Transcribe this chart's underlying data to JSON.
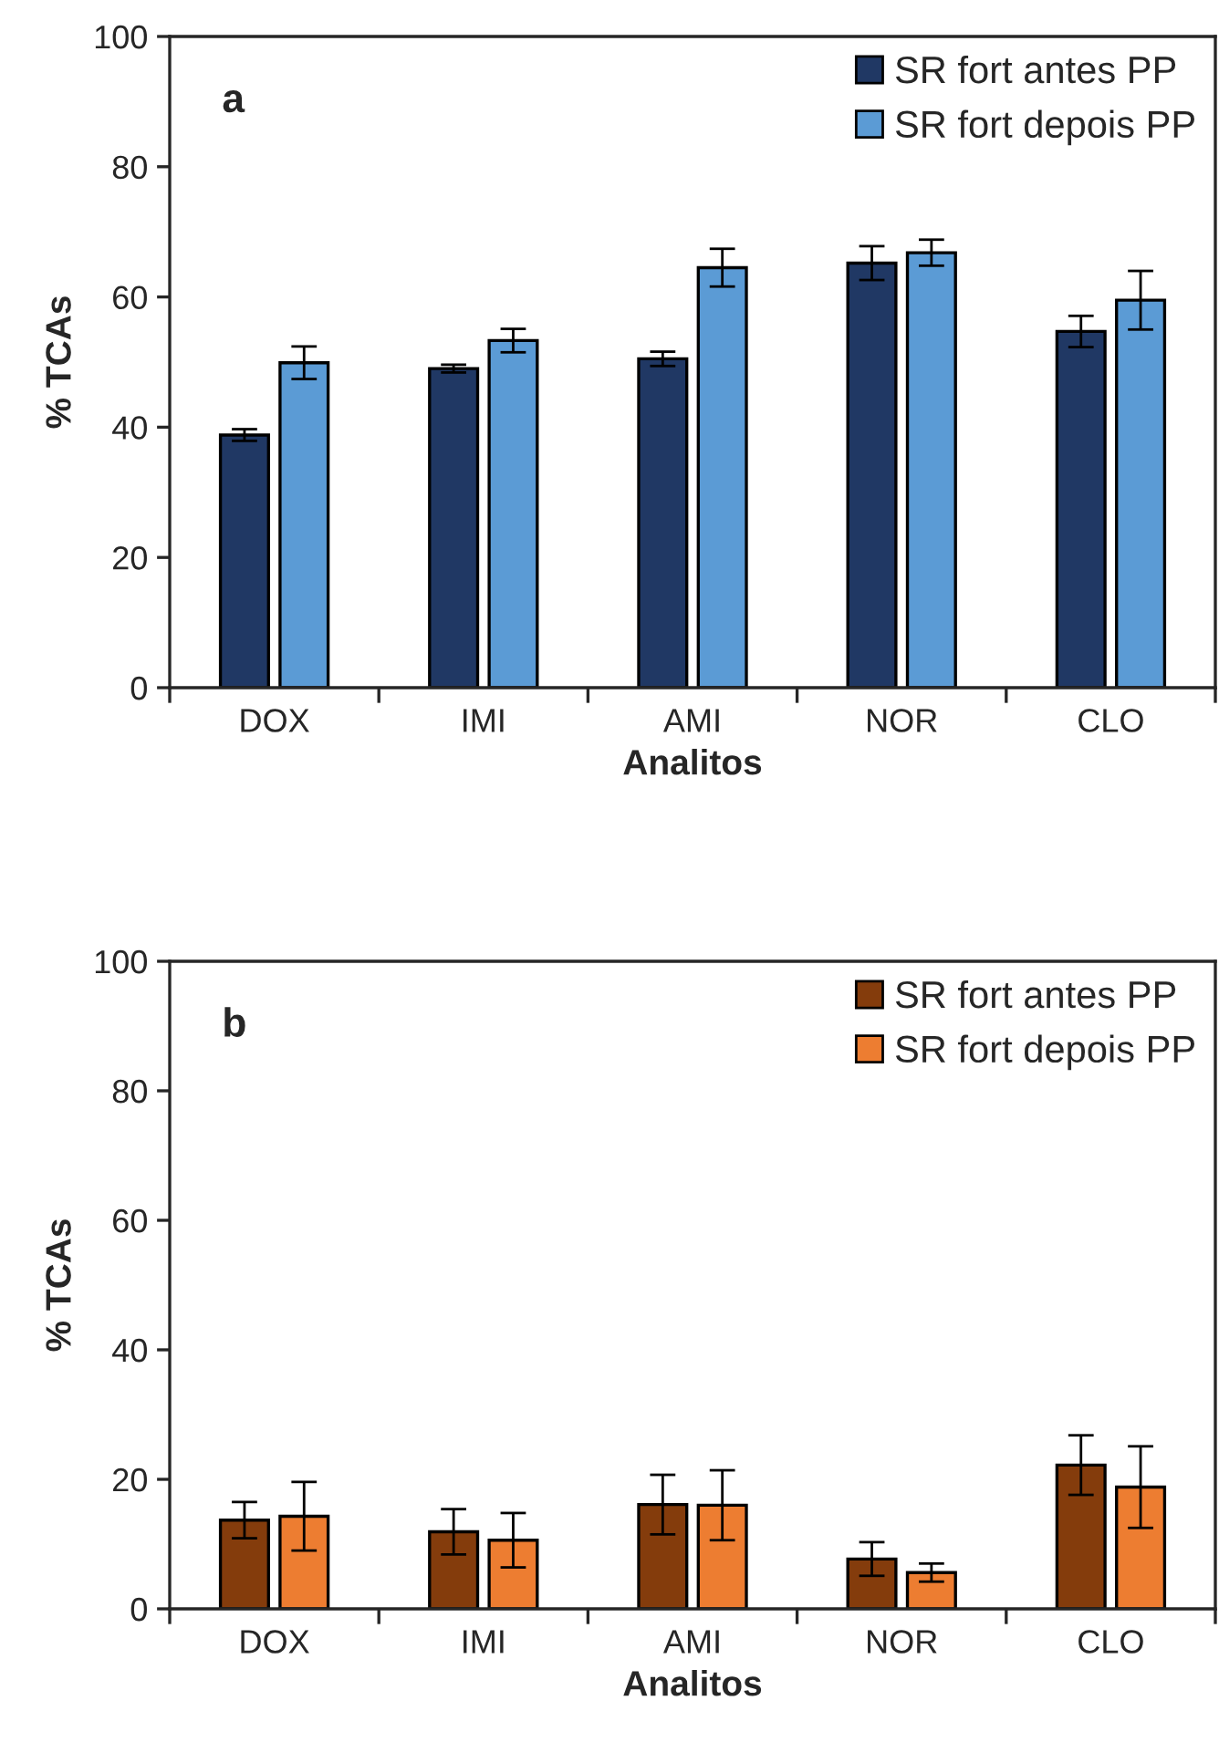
{
  "chart_data": [
    {
      "type": "bar",
      "xlabel": "Analitos",
      "ylabel": "% TCAs",
      "annotations": [
        "a"
      ],
      "categories": [
        "DOX",
        "IMI",
        "AMI",
        "NOR",
        "CLO"
      ],
      "ylim": [
        0,
        100
      ],
      "yticks": [
        0,
        20,
        40,
        60,
        80,
        100
      ],
      "legend": "top right",
      "series": [
        {
          "name": "SR fort antes PP",
          "color": "#203864",
          "values": [
            38.8,
            49,
            50.5,
            65.2,
            54.7
          ],
          "errors": [
            0.9,
            0.6,
            1.1,
            2.6,
            2.4
          ]
        },
        {
          "name": "SR fort depois PP",
          "color": "#5b9bd5",
          "values": [
            49.9,
            53.3,
            64.5,
            66.8,
            59.5
          ],
          "errors": [
            2.5,
            1.8,
            2.9,
            2,
            4.5
          ]
        }
      ]
    },
    {
      "type": "bar",
      "xlabel": "Analitos",
      "ylabel": "% TCAs",
      "annotations": [
        "b"
      ],
      "categories": [
        "DOX",
        "IMI",
        "AMI",
        "NOR",
        "CLO"
      ],
      "ylim": [
        0,
        100
      ],
      "yticks": [
        0,
        20,
        40,
        60,
        80,
        100
      ],
      "legend": "top right",
      "series": [
        {
          "name": "SR fort antes PP",
          "color": "#843c0c",
          "values": [
            13.7,
            11.9,
            16.1,
            7.7,
            22.2
          ],
          "errors": [
            2.8,
            3.5,
            4.6,
            2.6,
            4.6
          ]
        },
        {
          "name": "SR fort depois PP",
          "color": "#ed7d31",
          "values": [
            14.3,
            10.6,
            16,
            5.6,
            18.8
          ],
          "errors": [
            5.3,
            4.2,
            5.4,
            1.4,
            6.3
          ]
        }
      ]
    }
  ]
}
